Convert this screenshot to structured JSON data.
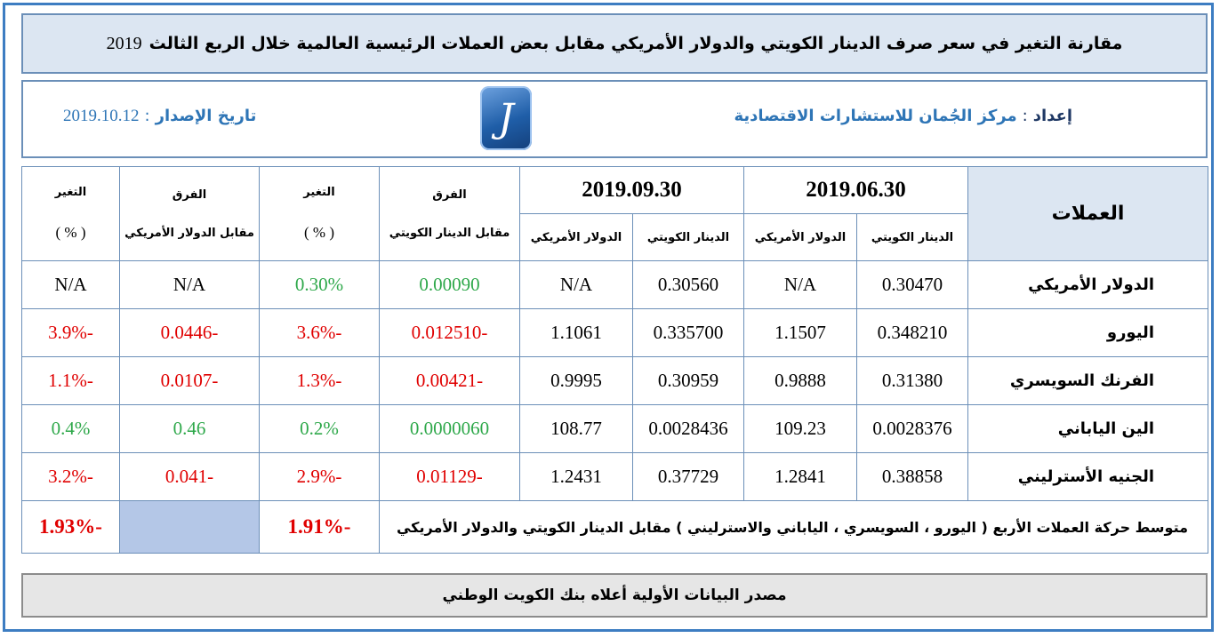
{
  "title": {
    "text": "مقارنة التغير في سعر صرف الدينار الكويتي والدولار الأمريكي مقابل بعض العملات الرئيسية العالمية خلال الربع الثالث",
    "year": "2019"
  },
  "info": {
    "prepared_label": "إعداد",
    "colon": ":",
    "org": "مركز الجُمان للاستشارات الاقتصادية",
    "issue_label": "تاريخ الإصدار",
    "issue_date": "2019.10.12",
    "logo_glyph": "J"
  },
  "table": {
    "currency_header": "العملات",
    "date1": "2019.06.30",
    "date2": "2019.09.30",
    "kwd_label": "الدينار الكويتي",
    "usd_label": "الدولار الأمريكي",
    "diff_label": "الفرق",
    "vs_kwd": "مقابل الدينار الكويتي",
    "change_label": "التغير",
    "pct_label": "( % )",
    "vs_usd": "مقابل الدولار الأمريكي",
    "rows": [
      {
        "name": "الدولار الأمريكي",
        "kwd1": "0.30470",
        "usd1": "N/A",
        "kwd2": "0.30560",
        "usd2": "N/A",
        "diff_kwd": "0.00090",
        "chg_kwd": "0.30%",
        "diff_usd": "N/A",
        "chg_usd": "N/A"
      },
      {
        "name": "اليورو",
        "kwd1": "0.348210",
        "usd1": "1.1507",
        "kwd2": "0.335700",
        "usd2": "1.1061",
        "diff_kwd": "-0.012510",
        "chg_kwd": "-3.6%",
        "diff_usd": "-0.0446",
        "chg_usd": "-3.9%"
      },
      {
        "name": "الفرنك السويسري",
        "kwd1": "0.31380",
        "usd1": "0.9888",
        "kwd2": "0.30959",
        "usd2": "0.9995",
        "diff_kwd": "-0.00421",
        "chg_kwd": "-1.3%",
        "diff_usd": "-0.0107",
        "chg_usd": "-1.1%"
      },
      {
        "name": "الين الياباني",
        "kwd1": "0.0028376",
        "usd1": "109.23",
        "kwd2": "0.0028436",
        "usd2": "108.77",
        "diff_kwd": "0.0000060",
        "chg_kwd": "0.2%",
        "diff_usd": "0.46",
        "chg_usd": "0.4%"
      },
      {
        "name": "الجنيه الأسترليني",
        "kwd1": "0.38858",
        "usd1": "1.2841",
        "kwd2": "0.37729",
        "usd2": "1.2431",
        "diff_kwd": "-0.01129",
        "chg_kwd": "-2.9%",
        "diff_usd": "-0.041",
        "chg_usd": "-3.2%"
      }
    ],
    "average": {
      "description": "متوسط حركة العملات الأربع ( اليورو ، السويسري ، الياباني والاسترليني ) مقابل الدينار الكويتي والدولار الأمريكي",
      "chg_kwd": "-1.91%",
      "chg_usd": "-1.93%"
    }
  },
  "source": "مصدر البيانات الأولية أعلاه بنك الكويت الوطني",
  "colors": {
    "negative": "#e00000",
    "positive": "#2ea84a",
    "header_bg": "#dce6f2",
    "border": "#6b8fb8"
  }
}
